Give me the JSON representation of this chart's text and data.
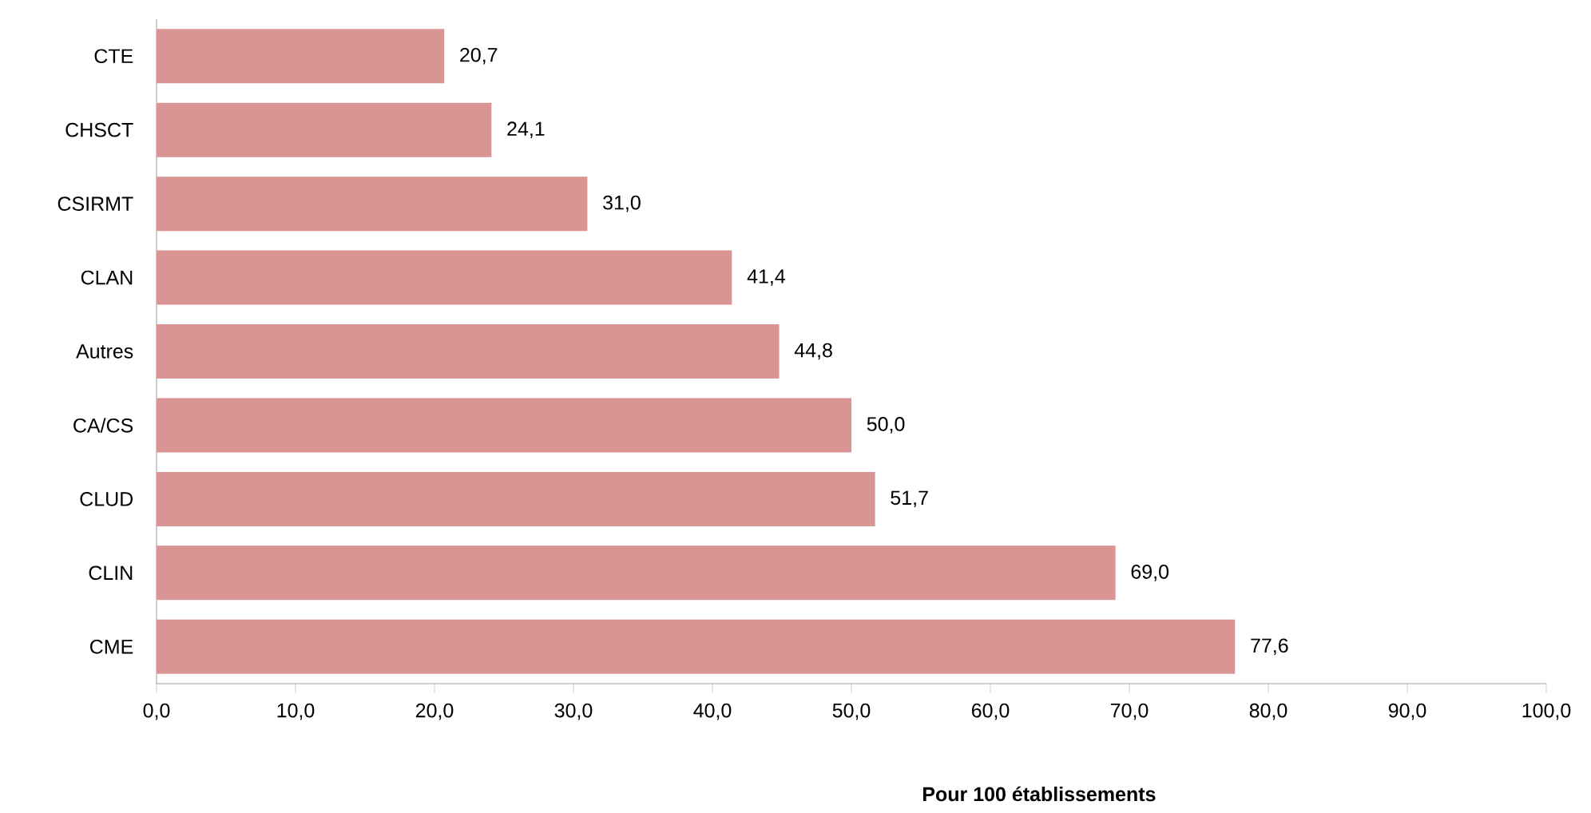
{
  "chart_data": {
    "type": "bar",
    "orientation": "horizontal",
    "xlabel": "Pour 100 établissements",
    "categories": [
      "CTE",
      "CHSCT",
      "CSIRMT",
      "CLAN",
      "Autres",
      "CA/CS",
      "CLUD",
      "CLIN",
      "CME"
    ],
    "values": [
      20.7,
      24.1,
      31.0,
      41.4,
      44.8,
      50.0,
      51.7,
      69.0,
      77.6
    ],
    "value_labels": [
      "20,7",
      "24,1",
      "31,0",
      "41,4",
      "44,8",
      "50,0",
      "51,7",
      "69,0",
      "77,6"
    ],
    "color": "#d99594",
    "xlim": [
      0,
      100
    ],
    "xticks": [
      {
        "value": 0,
        "label": "0,0"
      },
      {
        "value": 10,
        "label": "10,0"
      },
      {
        "value": 20,
        "label": "20,0"
      },
      {
        "value": 30,
        "label": "30,0"
      },
      {
        "value": 40,
        "label": "40,0"
      },
      {
        "value": 50,
        "label": "50,0"
      },
      {
        "value": 60,
        "label": "60,0"
      },
      {
        "value": 70,
        "label": "70,0"
      },
      {
        "value": 80,
        "label": "80,0"
      },
      {
        "value": 90,
        "label": "90,0"
      },
      {
        "value": 100,
        "label": "100,0"
      }
    ]
  }
}
